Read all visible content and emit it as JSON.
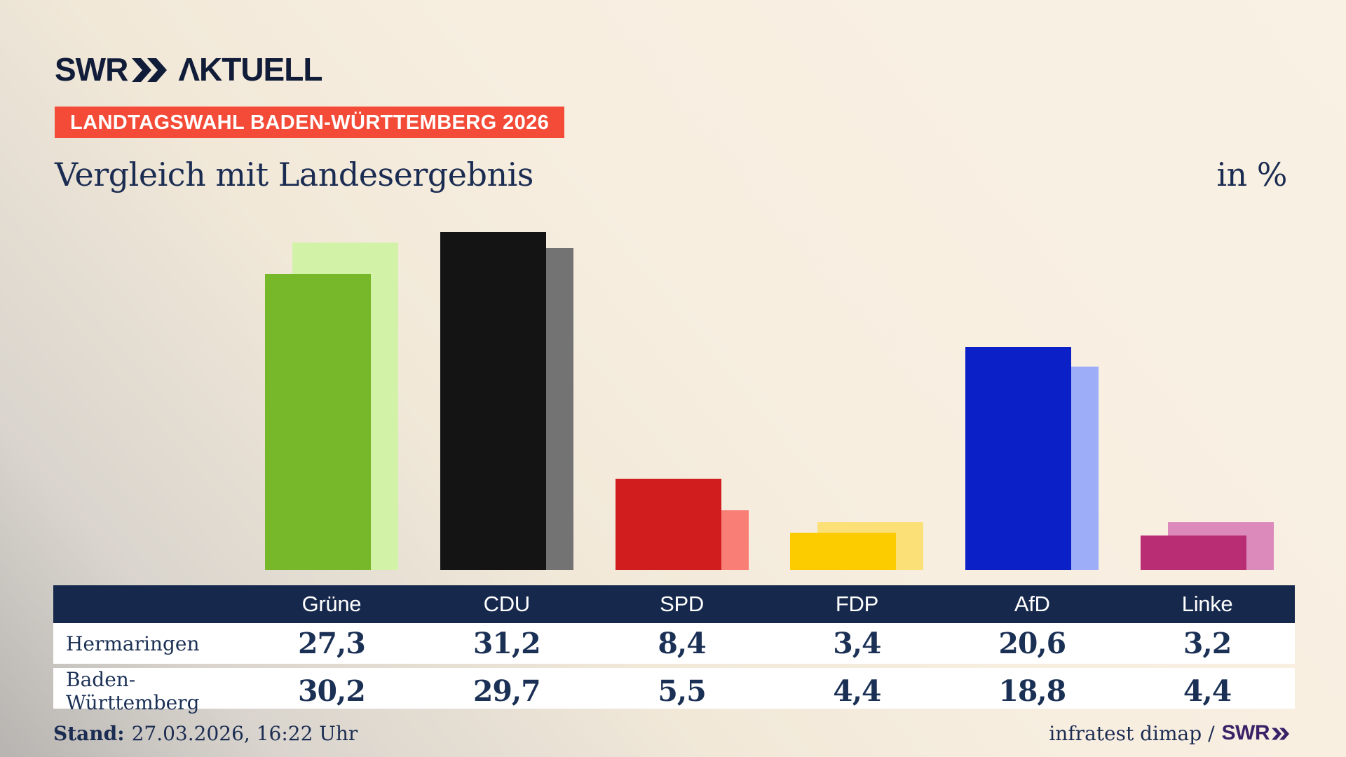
{
  "brand": {
    "swr": "SWR",
    "aktuell": "ΛKTUELL"
  },
  "badge": "LANDTAGSWAHL BADEN-WÜRTTEMBERG 2026",
  "title": "Vergleich mit Landesergebnis",
  "unit_label": "in %",
  "colors": {
    "background_cream": "#f8f0e2",
    "background_gray": "#bcb9b6",
    "badge_red": "#f34b37",
    "table_header_navy": "#16294d",
    "text_navy": "#1b2c52",
    "footer_logo_purple": "#3a2168"
  },
  "chart_data": {
    "type": "bar",
    "title": "Vergleich mit Landesergebnis",
    "unit": "in %",
    "categories": [
      "Grüne",
      "CDU",
      "SPD",
      "FDP",
      "AfD",
      "Linke"
    ],
    "series": [
      {
        "name": "Hermaringen",
        "values": [
          27.3,
          31.2,
          8.4,
          3.4,
          20.6,
          3.2
        ]
      },
      {
        "name": "Baden-Württemberg",
        "values": [
          30.2,
          29.7,
          5.5,
          4.4,
          18.8,
          4.4
        ]
      }
    ],
    "colors": {
      "primary": [
        "#76b82a",
        "#141414",
        "#d11d1d",
        "#fccc00",
        "#0b20c7",
        "#b92d74"
      ],
      "secondary": [
        "#d2f3a7",
        "#737373",
        "#f97e76",
        "#fbe077",
        "#9dadf8",
        "#dc8abb"
      ]
    },
    "ylim": [
      0,
      33
    ],
    "grid": false,
    "legend_position": "table-below"
  },
  "table": {
    "rows": [
      {
        "label": "Hermaringen",
        "values": [
          "27,3",
          "31,2",
          "8,4",
          "3,4",
          "20,6",
          "3,2"
        ]
      },
      {
        "label": "Baden-Württemberg",
        "values": [
          "30,2",
          "29,7",
          "5,5",
          "4,4",
          "18,8",
          "4,4"
        ]
      }
    ]
  },
  "footer": {
    "stand_label": "Stand:",
    "stand_value": "27.03.2026, 16:22 Uhr",
    "source": "infratest dimap /",
    "source_brand": "SWR"
  }
}
